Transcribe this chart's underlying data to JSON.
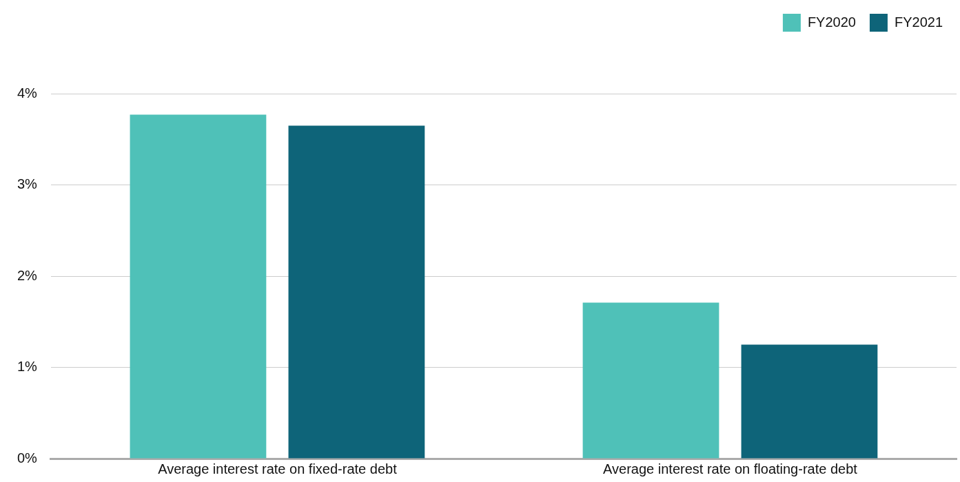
{
  "chart_data": {
    "type": "bar",
    "categories": [
      "Average interest rate on fixed-rate debt",
      "Average interest rate on floating-rate debt"
    ],
    "series": [
      {
        "name": "FY2020",
        "color": "#4fc1b8",
        "values": [
          3.77,
          1.71
        ]
      },
      {
        "name": "FY2021",
        "color": "#0e6479",
        "values": [
          3.65,
          1.25
        ]
      }
    ],
    "ylim": [
      0,
      4
    ],
    "yticks": [
      {
        "value": 0,
        "label": "0%"
      },
      {
        "value": 1,
        "label": "1%"
      },
      {
        "value": 2,
        "label": "2%"
      },
      {
        "value": 3,
        "label": "3%"
      },
      {
        "value": 4,
        "label": "4%"
      }
    ],
    "grid": "y",
    "legend": "top right"
  }
}
